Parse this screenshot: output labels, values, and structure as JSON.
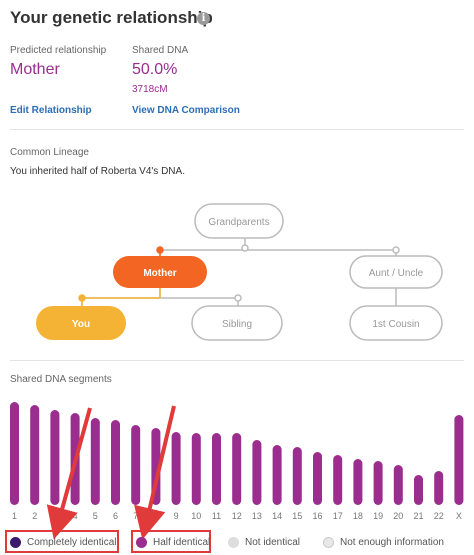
{
  "header": {
    "title": "Your genetic relationship",
    "info_icon": "info-icon"
  },
  "relationship": {
    "predicted_label": "Predicted relationship",
    "predicted_value": "Mother",
    "shared_label": "Shared DNA",
    "shared_percent": "50.0%",
    "shared_cm": "3718cM",
    "edit_link": "Edit Relationship",
    "compare_link": "View DNA Comparison"
  },
  "lineage": {
    "heading": "Common Lineage",
    "description": "You inherited half of Roberta V4's DNA.",
    "nodes": {
      "grandparents": "Grandparents",
      "mother": "Mother",
      "aunt_uncle": "Aunt / Uncle",
      "you": "You",
      "sibling": "Sibling",
      "first_cousin": "1st Cousin"
    }
  },
  "segments": {
    "heading": "Shared DNA segments",
    "chromosomes": [
      {
        "label": "1",
        "status": "half"
      },
      {
        "label": "2",
        "status": "half"
      },
      {
        "label": "3",
        "status": "half"
      },
      {
        "label": "4",
        "status": "half"
      },
      {
        "label": "5",
        "status": "half"
      },
      {
        "label": "6",
        "status": "half"
      },
      {
        "label": "7",
        "status": "half"
      },
      {
        "label": "8",
        "status": "half"
      },
      {
        "label": "9",
        "status": "half"
      },
      {
        "label": "10",
        "status": "half"
      },
      {
        "label": "11",
        "status": "half"
      },
      {
        "label": "12",
        "status": "half"
      },
      {
        "label": "13",
        "status": "half"
      },
      {
        "label": "14",
        "status": "half"
      },
      {
        "label": "15",
        "status": "half"
      },
      {
        "label": "16",
        "status": "half"
      },
      {
        "label": "17",
        "status": "half"
      },
      {
        "label": "18",
        "status": "half"
      },
      {
        "label": "19",
        "status": "half"
      },
      {
        "label": "20",
        "status": "half"
      },
      {
        "label": "21",
        "status": "half"
      },
      {
        "label": "22",
        "status": "half"
      },
      {
        "label": "X",
        "status": "half"
      }
    ]
  },
  "legend": {
    "completely_identical": "Completely identical",
    "half_identical": "Half identical",
    "not_identical": "Not identical",
    "not_enough": "Not enough information"
  },
  "colors": {
    "accent": "#9b2d8e",
    "complete": "#3b1a6e",
    "mother_node": "#f26522",
    "you_node": "#f5b335",
    "link": "#2c6db5",
    "annotation": "#e03a3a"
  }
}
